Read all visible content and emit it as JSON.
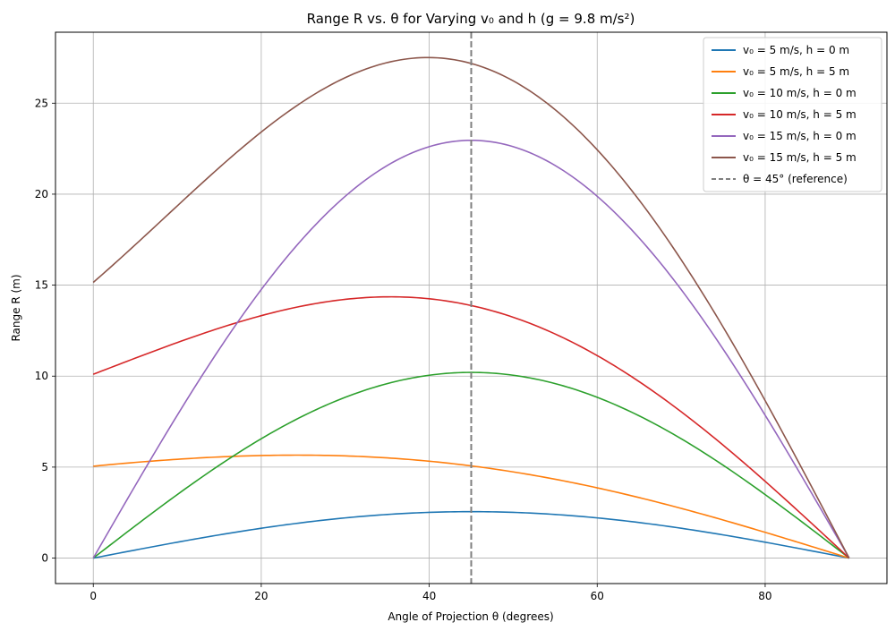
{
  "chart_data": {
    "type": "line",
    "title": "Range R vs. θ for Varying v₀ and h (g = 9.8 m/s²)",
    "xlabel": "Angle of Projection θ (degrees)",
    "ylabel": "Range R (m)",
    "xlim": [
      -4.5,
      94.5
    ],
    "ylim": [
      -1.4,
      28.9
    ],
    "x_ticks": [
      0,
      20,
      40,
      60,
      80
    ],
    "y_ticks": [
      0,
      5,
      10,
      15,
      20,
      25
    ],
    "grid": true,
    "legend_position": "top-right",
    "gravity": 9.8,
    "series": [
      {
        "name": "v₀ = 5 m/s, h = 0 m",
        "v0": 5,
        "h": 0,
        "color": "#1f77b4"
      },
      {
        "name": "v₀ = 5 m/s, h = 5 m",
        "v0": 5,
        "h": 5,
        "color": "#ff7f0e"
      },
      {
        "name": "v₀ = 10 m/s, h = 0 m",
        "v0": 10,
        "h": 0,
        "color": "#2ca02c"
      },
      {
        "name": "v₀ = 10 m/s, h = 5 m",
        "v0": 10,
        "h": 5,
        "color": "#d62728"
      },
      {
        "name": "v₀ = 15 m/s, h = 0 m",
        "v0": 15,
        "h": 0,
        "color": "#9467bd"
      },
      {
        "name": "v₀ = 15 m/s, h = 5 m",
        "v0": 15,
        "h": 5,
        "color": "#8c564b"
      }
    ],
    "reference_line": {
      "x": 45,
      "name": "θ = 45° (reference)",
      "color": "#7f7f7f",
      "style": "dashed"
    }
  }
}
